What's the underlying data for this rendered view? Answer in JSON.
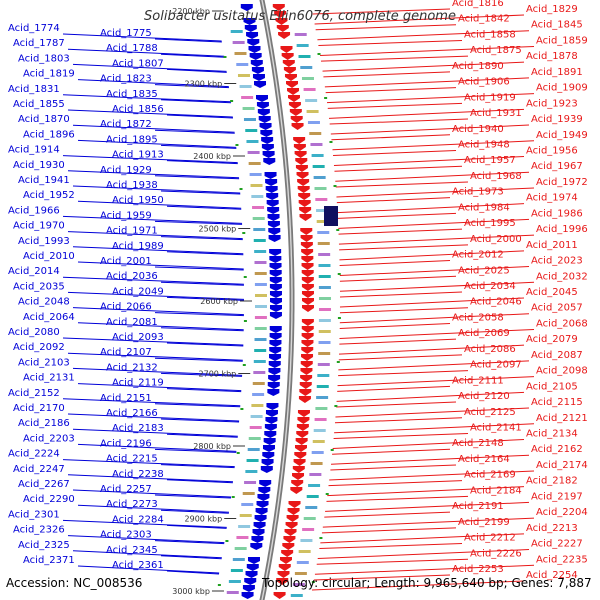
{
  "title": "Solibacter usitatus Ellin6076, complete genome",
  "accession": "Accession: NC_008536",
  "topology": "Topology: circular; Length: 9,965,640 bp; Genes: 7,887",
  "colors": {
    "left_strand": "#0000d8",
    "right_strand": "#e81818",
    "backbone": "#7a7a7a"
  },
  "kbp_ticks": [
    "2200 kbp",
    "2300 kbp",
    "2400 kbp",
    "2500 kbp",
    "2600 kbp",
    "2700 kbp",
    "2800 kbp",
    "2900 kbp",
    "3000 kbp"
  ],
  "left_labels": [
    "Acid_1774",
    "Acid_1775",
    "Acid_1787",
    "Acid_1788",
    "Acid_1803",
    "Acid_1807",
    "Acid_1819",
    "Acid_1823",
    "Acid_1831",
    "Acid_1835",
    "Acid_1855",
    "Acid_1856",
    "Acid_1870",
    "Acid_1872",
    "Acid_1896",
    "Acid_1895",
    "Acid_1914",
    "Acid_1913",
    "Acid_1930",
    "Acid_1929",
    "Acid_1941",
    "Acid_1938",
    "Acid_1952",
    "Acid_1950",
    "Acid_1966",
    "Acid_1959",
    "Acid_1970",
    "Acid_1971",
    "Acid_1993",
    "Acid_1989",
    "Acid_2010",
    "Acid_2001",
    "Acid_2014",
    "Acid_2036",
    "Acid_2035",
    "Acid_2049",
    "Acid_2048",
    "Acid_2066",
    "Acid_2064",
    "Acid_2081",
    "Acid_2080",
    "Acid_2093",
    "Acid_2092",
    "Acid_2107",
    "Acid_2103",
    "Acid_2132",
    "Acid_2131",
    "Acid_2119",
    "Acid_2152",
    "Acid_2151",
    "Acid_2170",
    "Acid_2166",
    "Acid_2186",
    "Acid_2183",
    "Acid_2203",
    "Acid_2196",
    "Acid_2224",
    "Acid_2215",
    "Acid_2247",
    "Acid_2238",
    "Acid_2267",
    "Acid_2257",
    "Acid_2290",
    "Acid_2273",
    "Acid_2301",
    "Acid_2284",
    "Acid_2326",
    "Acid_2303",
    "Acid_2325",
    "Acid_2345",
    "Acid_2371",
    "Acid_2361"
  ],
  "right_labels": [
    "Acid_1816",
    "Acid_1829",
    "Acid_1842",
    "Acid_1845",
    "Acid_1858",
    "Acid_1859",
    "Acid_1875",
    "Acid_1878",
    "Acid_1890",
    "Acid_1891",
    "Acid_1906",
    "Acid_1909",
    "Acid_1919",
    "Acid_1923",
    "Acid_1931",
    "Acid_1939",
    "Acid_1940",
    "Acid_1949",
    "Acid_1948",
    "Acid_1956",
    "Acid_1957",
    "Acid_1967",
    "Acid_1968",
    "Acid_1972",
    "Acid_1973",
    "Acid_1974",
    "Acid_1984",
    "Acid_1986",
    "Acid_1995",
    "Acid_1996",
    "Acid_2000",
    "Acid_2011",
    "Acid_2012",
    "Acid_2023",
    "Acid_2025",
    "Acid_2032",
    "Acid_2034",
    "Acid_2045",
    "Acid_2046",
    "Acid_2057",
    "Acid_2058",
    "Acid_2068",
    "Acid_2069",
    "Acid_2079",
    "Acid_2086",
    "Acid_2087",
    "Acid_2097",
    "Acid_2098",
    "Acid_2111",
    "Acid_2105",
    "Acid_2120",
    "Acid_2115",
    "Acid_2125",
    "Acid_2121",
    "Acid_2141",
    "Acid_2134",
    "Acid_2148",
    "Acid_2162",
    "Acid_2164",
    "Acid_2174",
    "Acid_2169",
    "Acid_2182",
    "Acid_2184",
    "Acid_2197",
    "Acid_2191",
    "Acid_2204",
    "Acid_2199",
    "Acid_2213",
    "Acid_2212",
    "Acid_2227",
    "Acid_2226",
    "Acid_2235",
    "Acid_2253",
    "Acid_2254"
  ]
}
